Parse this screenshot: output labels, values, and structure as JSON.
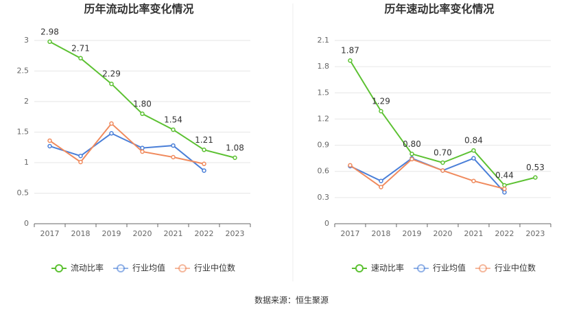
{
  "chart_data": [
    {
      "type": "line",
      "title": "历年流动比率变化情况",
      "categories": [
        "2017",
        "2018",
        "2019",
        "2020",
        "2021",
        "2022",
        "2023"
      ],
      "ylim": [
        0,
        3
      ],
      "yticks": [
        0,
        0.5,
        1,
        1.5,
        2,
        2.5,
        3
      ],
      "grid": true,
      "series": [
        {
          "name": "流动比率",
          "color": "#5cc132",
          "values": [
            2.98,
            2.71,
            2.29,
            1.8,
            1.54,
            1.21,
            1.08
          ],
          "value_labels": [
            "2.98",
            "2.71",
            "2.29",
            "1.80",
            "1.54",
            "1.21",
            "1.08"
          ]
        },
        {
          "name": "行业均值",
          "color": "#4a7fd8",
          "values": [
            1.27,
            1.11,
            1.48,
            1.24,
            1.28,
            0.87,
            null
          ]
        },
        {
          "name": "行业中位数",
          "color": "#f08a5d",
          "values": [
            1.36,
            1.01,
            1.64,
            1.18,
            1.09,
            0.98,
            null
          ]
        }
      ]
    },
    {
      "type": "line",
      "title": "历年速动比率变化情况",
      "categories": [
        "2017",
        "2018",
        "2019",
        "2020",
        "2021",
        "2022",
        "2023"
      ],
      "ylim": [
        0,
        2.1
      ],
      "yticks": [
        0,
        0.3,
        0.6,
        0.9,
        1.2,
        1.5,
        1.8,
        2.1
      ],
      "grid": true,
      "series": [
        {
          "name": "速动比率",
          "color": "#5cc132",
          "values": [
            1.87,
            1.29,
            0.8,
            0.7,
            0.84,
            0.44,
            0.53
          ],
          "value_labels": [
            "1.87",
            "1.29",
            "0.80",
            "0.70",
            "0.84",
            "0.44",
            "0.53"
          ]
        },
        {
          "name": "行业均值",
          "color": "#4a7fd8",
          "values": [
            0.66,
            0.49,
            0.75,
            0.61,
            0.75,
            0.36,
            null
          ]
        },
        {
          "name": "行业中位数",
          "color": "#f08a5d",
          "values": [
            0.67,
            0.42,
            0.74,
            0.61,
            0.49,
            0.4,
            null
          ]
        }
      ]
    }
  ],
  "source": "数据来源：恒生聚源"
}
